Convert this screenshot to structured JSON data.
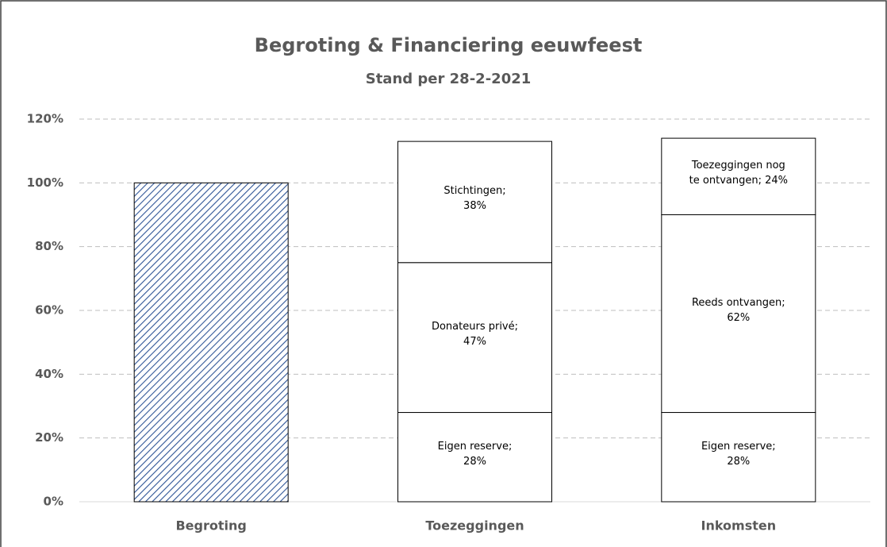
{
  "chart_data": {
    "type": "stacked_bar",
    "title": "Begroting & Financiering eeuwfeest",
    "subtitle": "Stand per 28-2-2021",
    "categories": [
      "Begroting",
      "Toezeggingen",
      "Inkomsten"
    ],
    "series": [
      {
        "name": "Begroting",
        "color": "#2f5597",
        "pattern": "hatch",
        "values": [
          100,
          null,
          null
        ]
      },
      {
        "name": "Eigen reserve",
        "color": "#ffffff",
        "values": [
          null,
          28,
          28
        ],
        "value_labels": [
          null,
          "Eigen reserve;\n28%",
          "Eigen reserve;\n28%"
        ]
      },
      {
        "name": "Donateurs privé",
        "color": "#ffffff",
        "values": [
          null,
          47,
          null
        ],
        "value_labels": [
          null,
          "Donateurs privé;\n47%",
          null
        ]
      },
      {
        "name": "Reeds ontvangen",
        "color": "#ffffff",
        "values": [
          null,
          null,
          62
        ],
        "value_labels": [
          null,
          null,
          "Reeds ontvangen;\n62%"
        ]
      },
      {
        "name": "Stichtingen",
        "color": "#ffffff",
        "values": [
          null,
          38,
          null
        ],
        "value_labels": [
          null,
          "Stichtingen;\n38%",
          null
        ]
      },
      {
        "name": "Toezeggingen nog te ontvangen",
        "color": "#ffffff",
        "values": [
          null,
          null,
          24
        ],
        "value_labels": [
          null,
          null,
          "Toezeggingen nog\nte ontvangen; 24%"
        ]
      }
    ],
    "ylim": [
      0,
      120
    ],
    "yticks": [
      {
        "value": 0,
        "label": "0%"
      },
      {
        "value": 20,
        "label": "20%"
      },
      {
        "value": 40,
        "label": "40%"
      },
      {
        "value": 60,
        "label": "60%"
      },
      {
        "value": 80,
        "label": "80%"
      },
      {
        "value": 100,
        "label": "100%"
      },
      {
        "value": 120,
        "label": "120%"
      }
    ],
    "grid": true,
    "legend": false
  }
}
